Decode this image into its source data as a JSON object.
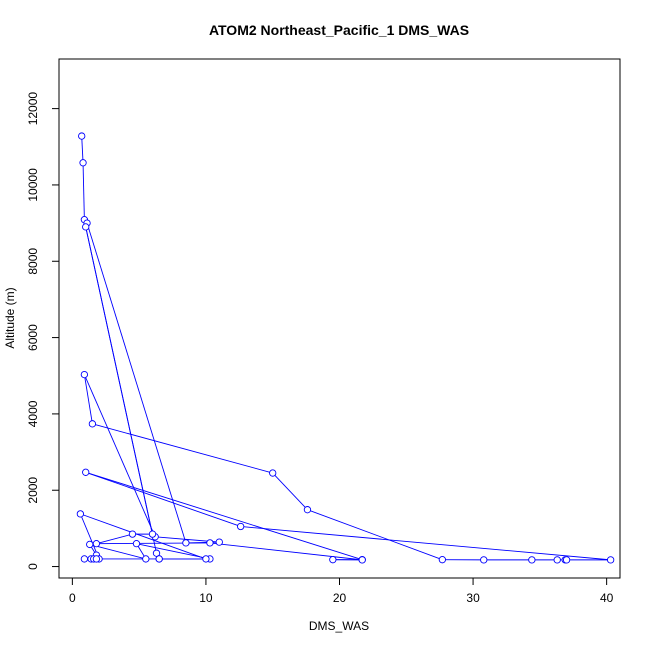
{
  "chart_data": {
    "type": "line",
    "title": "ATOM2 Northeast_Pacific_1 DMS_WAS",
    "xlabel": "DMS_WAS",
    "ylabel": "Altitude (m)",
    "xlim": [
      -1,
      41
    ],
    "ylim": [
      -300,
      13300
    ],
    "xticks": [
      0,
      10,
      20,
      30,
      40
    ],
    "yticks": [
      0,
      2000,
      4000,
      6000,
      8000,
      10000,
      12000
    ],
    "grid": false,
    "legend": "none",
    "markers": "open-circle",
    "series": [
      {
        "color": "#0000ff",
        "points": [
          {
            "x": 0.7,
            "y": 11280
          },
          {
            "x": 0.8,
            "y": 10580
          },
          {
            "x": 0.9,
            "y": 9090
          },
          {
            "x": 1.1,
            "y": 9000
          },
          {
            "x": 8.5,
            "y": 620
          },
          {
            "x": 11.0,
            "y": 640
          },
          {
            "x": 6.2,
            "y": 780
          },
          {
            "x": 0.9,
            "y": 5030
          },
          {
            "x": 1.5,
            "y": 3740
          },
          {
            "x": 15.0,
            "y": 2450
          },
          {
            "x": 17.6,
            "y": 1490
          },
          {
            "x": 27.7,
            "y": 180
          },
          {
            "x": 30.8,
            "y": 175
          },
          {
            "x": 34.4,
            "y": 175
          },
          {
            "x": 36.3,
            "y": 175
          },
          {
            "x": 36.9,
            "y": 175
          },
          {
            "x": 37.0,
            "y": 175
          },
          {
            "x": 40.3,
            "y": 175
          },
          {
            "x": 12.6,
            "y": 1050
          },
          {
            "x": 1.0,
            "y": 2470
          },
          {
            "x": 21.7,
            "y": 180
          },
          {
            "x": 19.5,
            "y": 180
          },
          {
            "x": 21.7,
            "y": 175
          },
          {
            "x": 10.3,
            "y": 620
          },
          {
            "x": 1.8,
            "y": 600
          },
          {
            "x": 4.5,
            "y": 850
          },
          {
            "x": 6.0,
            "y": 850
          },
          {
            "x": 1.0,
            "y": 8900
          },
          {
            "x": 6.3,
            "y": 350
          },
          {
            "x": 6.5,
            "y": 200
          },
          {
            "x": 6.5,
            "y": 200
          },
          {
            "x": 10.3,
            "y": 200
          },
          {
            "x": 4.8,
            "y": 600
          },
          {
            "x": 5.5,
            "y": 200
          },
          {
            "x": 1.3,
            "y": 580
          },
          {
            "x": 1.8,
            "y": 300
          },
          {
            "x": 1.4,
            "y": 200
          },
          {
            "x": 2.0,
            "y": 200
          },
          {
            "x": 0.6,
            "y": 1380
          },
          {
            "x": 10.0,
            "y": 200
          },
          {
            "x": 0.9,
            "y": 200
          },
          {
            "x": 1.6,
            "y": 200
          },
          {
            "x": 1.8,
            "y": 200
          }
        ]
      }
    ]
  }
}
